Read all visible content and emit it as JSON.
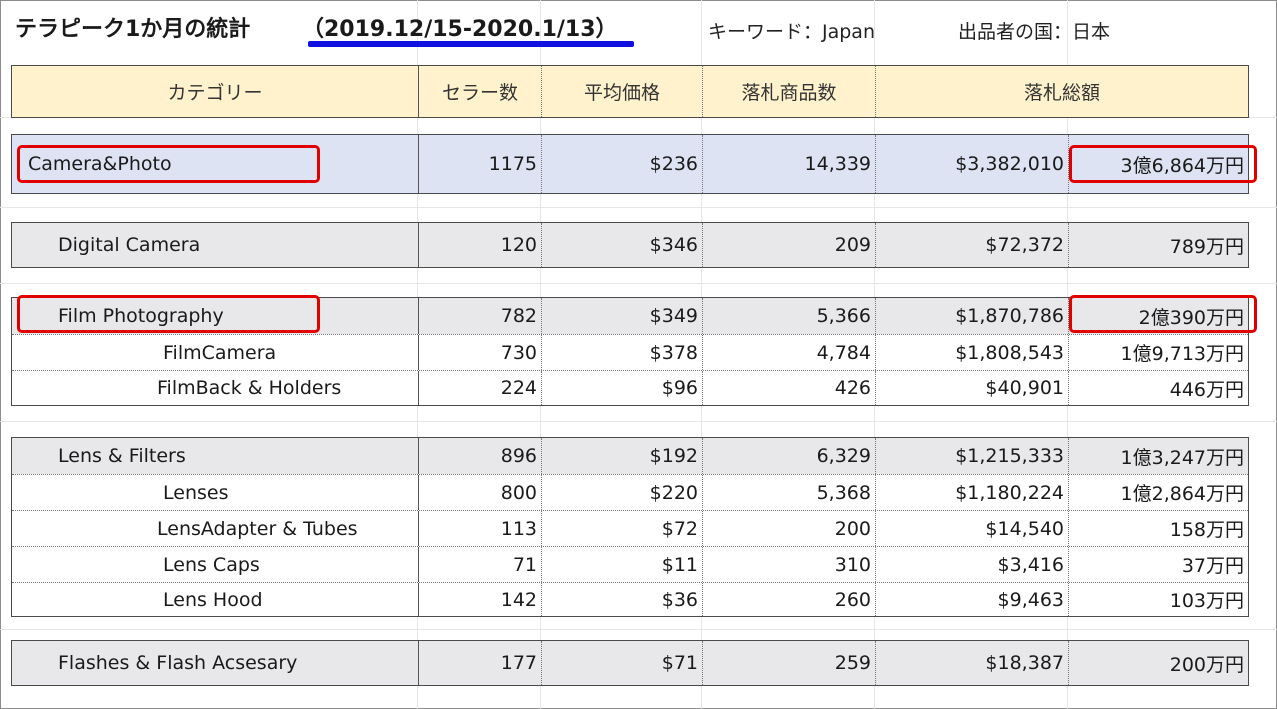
{
  "title": {
    "main": "テラピーク1か月の統計",
    "period": "（2019.12/15-2020.1/13）",
    "keyword": "キーワード：Japan",
    "seller_country": "出品者の国：日本"
  },
  "headers": [
    "カテゴリー",
    "セラー数",
    "平均価格",
    "落札商品数",
    "落札総額"
  ],
  "rows": {
    "camera_photo": {
      "category": "Camera&Photo",
      "sellers": "1175",
      "avg_price": "$236",
      "items_sold": "14,339",
      "total_usd": "$3,382,010",
      "total_jpy": "3億6,864万円"
    },
    "digital_camera": {
      "category": "Digital Camera",
      "sellers": "120",
      "avg_price": "$346",
      "items_sold": "209",
      "total_usd": "$72,372",
      "total_jpy": "789万円"
    },
    "film_photography": {
      "category": "Film Photography",
      "sellers": "782",
      "avg_price": "$349",
      "items_sold": "5,366",
      "total_usd": "$1,870,786",
      "total_jpy": "2億390万円"
    },
    "film_camera": {
      "category": "FilmCamera",
      "sellers": "730",
      "avg_price": "$378",
      "items_sold": "4,784",
      "total_usd": "$1,808,543",
      "total_jpy": "1億9,713万円"
    },
    "film_back": {
      "category": "FilmBack & Holders",
      "sellers": "224",
      "avg_price": "$96",
      "items_sold": "426",
      "total_usd": "$40,901",
      "total_jpy": "446万円"
    },
    "lens_filters": {
      "category": "Lens & Filters",
      "sellers": "896",
      "avg_price": "$192",
      "items_sold": "6,329",
      "total_usd": "$1,215,333",
      "total_jpy": "1億3,247万円"
    },
    "lenses": {
      "category": "Lenses",
      "sellers": "800",
      "avg_price": "$220",
      "items_sold": "5,368",
      "total_usd": "$1,180,224",
      "total_jpy": "1億2,864万円"
    },
    "lens_adapter": {
      "category": "LensAdapter & Tubes",
      "sellers": "113",
      "avg_price": "$72",
      "items_sold": "200",
      "total_usd": "$14,540",
      "total_jpy": "158万円"
    },
    "lens_caps": {
      "category": "Lens Caps",
      "sellers": "71",
      "avg_price": "$11",
      "items_sold": "310",
      "total_usd": "$3,416",
      "total_jpy": "37万円"
    },
    "lens_hood": {
      "category": "Lens Hood",
      "sellers": "142",
      "avg_price": "$36",
      "items_sold": "260",
      "total_usd": "$9,463",
      "total_jpy": "103万円"
    },
    "flashes": {
      "category": "Flashes & Flash Acsesary",
      "sellers": "177",
      "avg_price": "$71",
      "items_sold": "259",
      "total_usd": "$18,387",
      "total_jpy": "200万円"
    }
  },
  "colors": {
    "header_bg": "#fff2cc",
    "camera_photo_bg": "#dde3f2",
    "category_bg": "#e8e7e9",
    "highlight_box": "#e00000",
    "underline": "#1010e0"
  }
}
